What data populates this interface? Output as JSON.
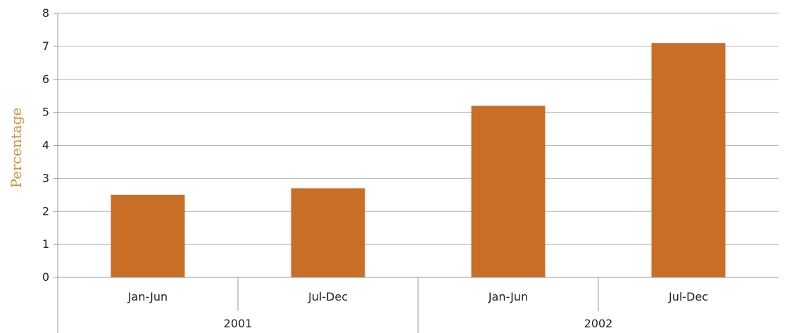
{
  "chart_data": {
    "type": "bar",
    "ylabel": "Percentage",
    "ylim": [
      0,
      8
    ],
    "yticks": [
      "0",
      "1",
      "2",
      "3",
      "4",
      "5",
      "6",
      "7",
      "8"
    ],
    "groups": [
      {
        "label": "2001",
        "categories": [
          "Jan-Jun",
          "Jul-Dec"
        ]
      },
      {
        "label": "2002",
        "categories": [
          "Jan-Jun",
          "Jul-Dec"
        ]
      }
    ],
    "categories": [
      "Jan-Jun",
      "Jul-Dec",
      "Jan-Jun",
      "Jul-Dec"
    ],
    "values": [
      2.5,
      2.7,
      5.2,
      7.1
    ],
    "grid": true,
    "legend": "none",
    "colors": {
      "bar": "#c96e27",
      "axis_title": "#d98d3c",
      "gridline": "#b3b3b3",
      "axis": "#9a9a9a"
    }
  }
}
